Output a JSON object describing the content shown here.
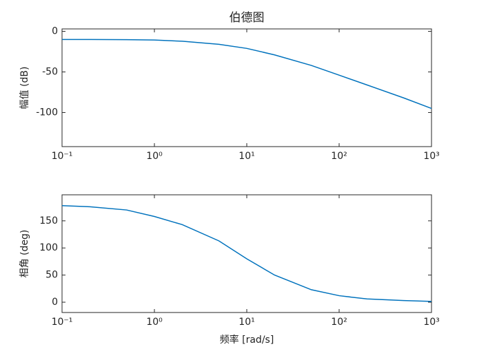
{
  "chart_data": [
    {
      "type": "line",
      "title": "伯德图",
      "ylabel": "幅值 (dB)",
      "xscale": "log",
      "x": [
        0.1,
        0.2,
        0.5,
        1,
        2,
        5,
        10,
        20,
        50,
        100,
        200,
        500,
        1000
      ],
      "series": [
        {
          "color": "#0072bd",
          "values": [
            -10,
            -10,
            -10.2,
            -10.7,
            -12.2,
            -16,
            -21,
            -29,
            -42,
            -54,
            -66,
            -82,
            -95
          ]
        }
      ],
      "xlim": [
        0.1,
        1000
      ],
      "ylim": [
        -142,
        3
      ],
      "xticks": [
        {
          "value": 0.1,
          "label": "10⁻¹"
        },
        {
          "value": 1,
          "label": "10⁰"
        },
        {
          "value": 10,
          "label": "10¹"
        },
        {
          "value": 100,
          "label": "10²"
        },
        {
          "value": 1000,
          "label": "10³"
        }
      ],
      "yticks": [
        0,
        -50,
        -100
      ]
    },
    {
      "type": "line",
      "xlabel": "频率 [rad/s]",
      "ylabel": "相角 (deg)",
      "xscale": "log",
      "x": [
        0.1,
        0.2,
        0.5,
        1,
        2,
        5,
        10,
        20,
        50,
        100,
        200,
        500,
        1000
      ],
      "series": [
        {
          "color": "#0072bd",
          "values": [
            178,
            176,
            170,
            158,
            143,
            113,
            80,
            50,
            23,
            12,
            6,
            3,
            1.5
          ]
        }
      ],
      "xlim": [
        0.1,
        1000
      ],
      "ylim": [
        -19,
        198
      ],
      "xticks": [
        {
          "value": 0.1,
          "label": "10⁻¹"
        },
        {
          "value": 1,
          "label": "10⁰"
        },
        {
          "value": 10,
          "label": "10¹"
        },
        {
          "value": 100,
          "label": "10²"
        },
        {
          "value": 1000,
          "label": "10³"
        }
      ],
      "yticks": [
        0,
        50,
        100,
        150
      ]
    }
  ]
}
